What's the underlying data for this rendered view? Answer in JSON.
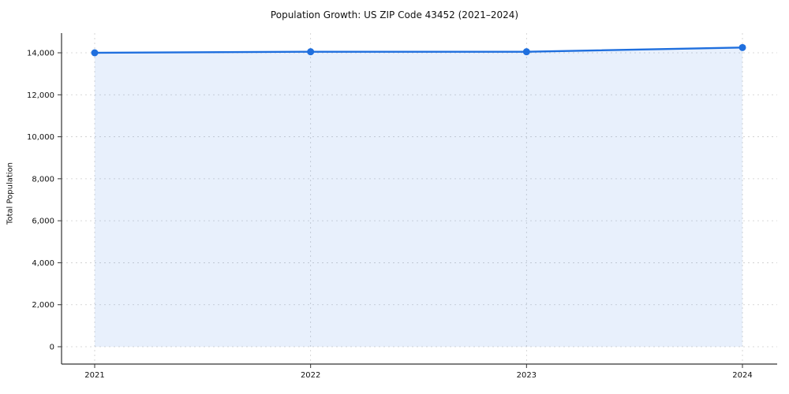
{
  "chart_data": {
    "type": "area",
    "title": "Population Growth: US ZIP Code 43452 (2021–2024)",
    "xlabel": "",
    "ylabel": "Total Population",
    "categories": [
      "2021",
      "2022",
      "2023",
      "2024"
    ],
    "series": [
      {
        "name": "Total Population",
        "values": [
          14000,
          14050,
          14050,
          14250
        ]
      }
    ],
    "y_ticks": [
      0,
      2000,
      4000,
      6000,
      8000,
      10000,
      12000,
      14000
    ],
    "ylim": [
      0,
      15000
    ],
    "grid": "dashed",
    "legend_position": "none",
    "colors": {
      "line": "#1f6fde",
      "marker": "#1f6fde",
      "area_fill": "#1f6fde",
      "area_fill_opacity": 0.1,
      "gridline": "#cccccc",
      "spine": "#333333",
      "background": "#ffffff",
      "text": "#111111"
    }
  }
}
